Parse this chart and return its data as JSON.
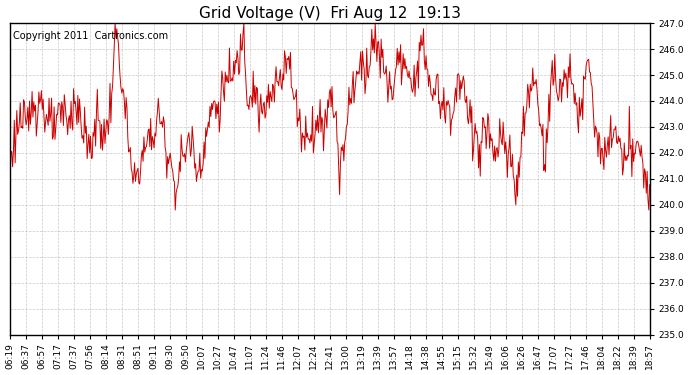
{
  "title": "Grid Voltage (V)  Fri Aug 12  19:13",
  "copyright_text": "Copyright 2011  Cartronics.com",
  "line_color": "#cc0000",
  "background_color": "#ffffff",
  "plot_background": "#ffffff",
  "grid_color": "#bbbbbb",
  "ylim": [
    235.0,
    247.0
  ],
  "yticks": [
    235.0,
    236.0,
    237.0,
    238.0,
    239.0,
    240.0,
    241.0,
    242.0,
    243.0,
    244.0,
    245.0,
    246.0,
    247.0
  ],
  "xtick_labels": [
    "06:19",
    "06:37",
    "06:57",
    "07:17",
    "07:37",
    "07:56",
    "08:14",
    "08:31",
    "08:51",
    "09:11",
    "09:30",
    "09:50",
    "10:07",
    "10:27",
    "10:47",
    "11:07",
    "11:24",
    "11:46",
    "12:07",
    "12:24",
    "12:41",
    "13:00",
    "13:19",
    "13:39",
    "13:57",
    "14:18",
    "14:38",
    "14:55",
    "15:15",
    "15:32",
    "15:49",
    "16:06",
    "16:26",
    "16:47",
    "17:07",
    "17:27",
    "17:46",
    "18:04",
    "18:22",
    "18:39",
    "18:57"
  ],
  "line_width": 0.7,
  "title_fontsize": 11,
  "copyright_fontsize": 7,
  "tick_fontsize": 6.5
}
